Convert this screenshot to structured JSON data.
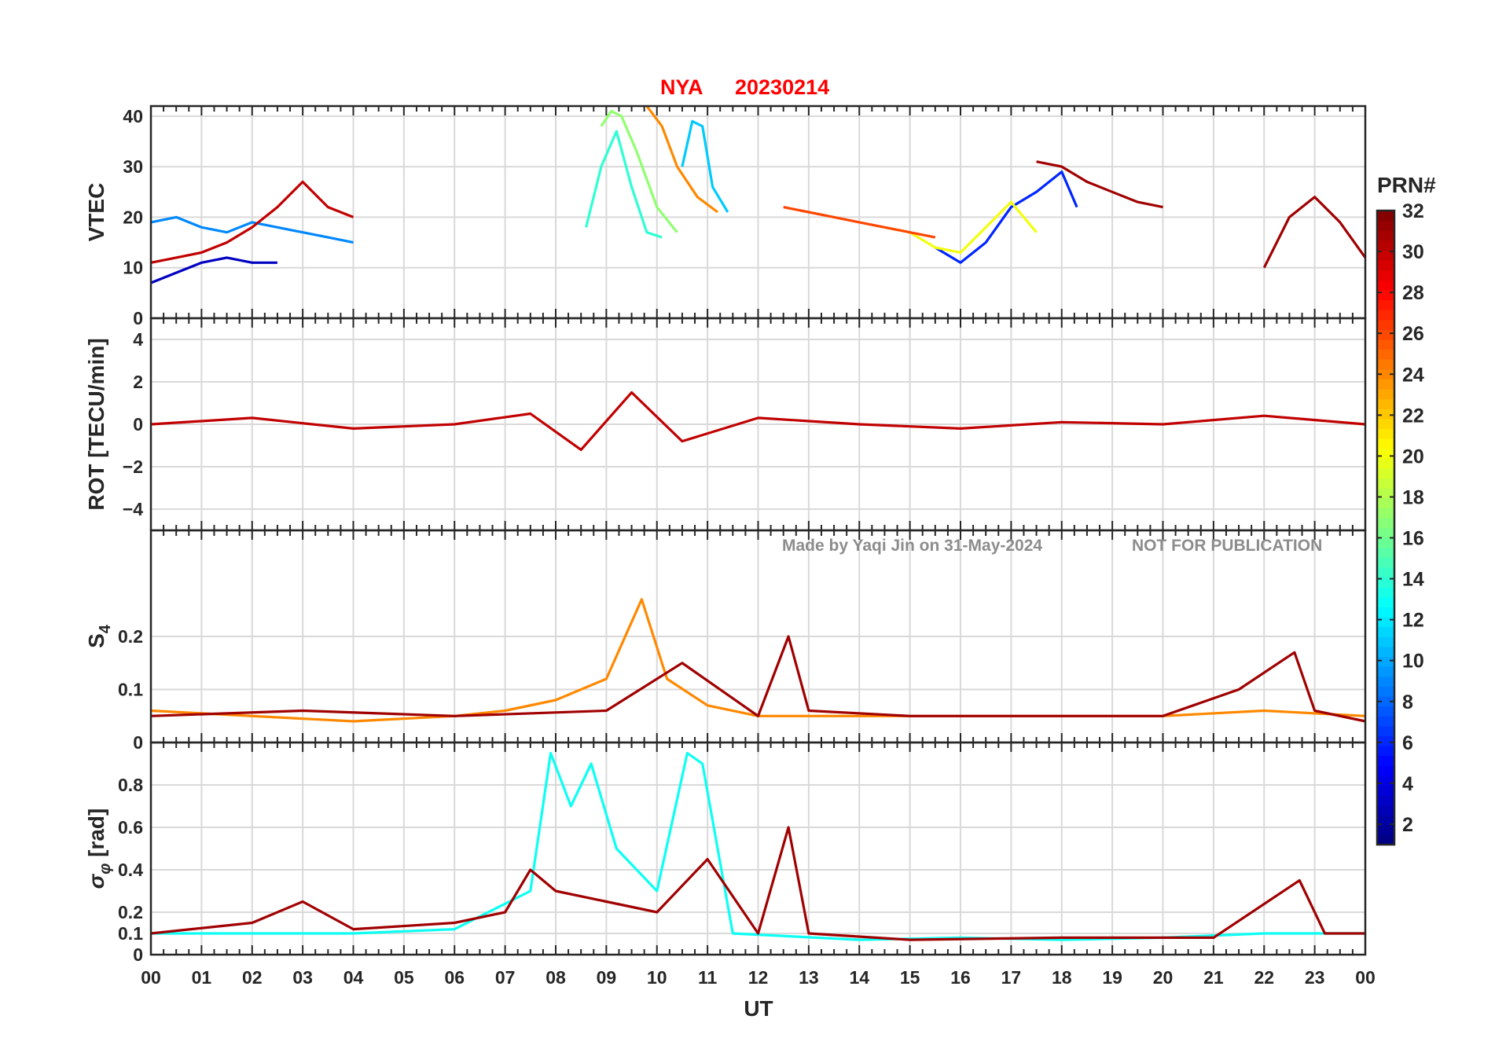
{
  "title": {
    "station": "NYA",
    "date": "20230214"
  },
  "watermark": {
    "author": "Made by Yaqi Jin on 31-May-2024",
    "notice": "NOT FOR PUBLICATION"
  },
  "xaxis": {
    "label": "UT",
    "range": [
      0,
      24
    ],
    "ticks": [
      "00",
      "01",
      "02",
      "03",
      "04",
      "05",
      "06",
      "07",
      "08",
      "09",
      "10",
      "11",
      "12",
      "13",
      "14",
      "15",
      "16",
      "17",
      "18",
      "19",
      "20",
      "21",
      "22",
      "23",
      "00"
    ]
  },
  "colorbar": {
    "label": "PRN#",
    "range": [
      1,
      32
    ],
    "ticks": [
      "2",
      "4",
      "6",
      "8",
      "10",
      "12",
      "14",
      "16",
      "18",
      "20",
      "22",
      "24",
      "26",
      "28",
      "30",
      "32"
    ],
    "colormap": "jet"
  },
  "chart_data": [
    {
      "type": "line",
      "ylabel": "VTEC",
      "ylim": [
        0,
        42
      ],
      "yticks": [
        "0",
        "10",
        "20",
        "30",
        "40"
      ],
      "grid": true,
      "series": [
        {
          "prn": 3,
          "x": [
            0,
            0.5,
            1,
            1.5,
            2,
            2.5
          ],
          "y": [
            7,
            9,
            11,
            12,
            11,
            11
          ]
        },
        {
          "prn": 6,
          "x": [
            15.5,
            16,
            16.5,
            17,
            17.5,
            18,
            18.3
          ],
          "y": [
            14,
            11,
            15,
            22,
            25,
            29,
            22
          ]
        },
        {
          "prn": 9,
          "x": [
            0,
            0.5,
            1,
            1.5,
            2,
            2.5,
            3,
            3.5,
            4
          ],
          "y": [
            19,
            20,
            18,
            17,
            19,
            18,
            17,
            16,
            15
          ]
        },
        {
          "prn": 11,
          "x": [
            10.5,
            10.7,
            10.9,
            11.1,
            11.4
          ],
          "y": [
            30,
            39,
            38,
            26,
            21
          ]
        },
        {
          "prn": 14,
          "x": [
            8.6,
            8.9,
            9.2,
            9.5,
            9.8,
            10.1
          ],
          "y": [
            18,
            30,
            37,
            26,
            17,
            16
          ]
        },
        {
          "prn": 17,
          "x": [
            8.9,
            9.1,
            9.3,
            9.6,
            10.0,
            10.4
          ],
          "y": [
            38,
            41,
            40,
            33,
            22,
            17
          ]
        },
        {
          "prn": 20,
          "x": [
            14.5,
            15,
            15.5,
            16,
            16.5,
            17,
            17.5
          ],
          "y": [
            18,
            17,
            14,
            13,
            18,
            23,
            17
          ]
        },
        {
          "prn": 24,
          "x": [
            9.8,
            10.1,
            10.4,
            10.8,
            11.2
          ],
          "y": [
            42,
            38,
            30,
            24,
            21
          ]
        },
        {
          "prn": 26,
          "x": [
            12.5,
            13,
            13.5,
            14,
            14.5,
            15,
            15.5
          ],
          "y": [
            22,
            21,
            20,
            19,
            18,
            17,
            16
          ]
        },
        {
          "prn": 30,
          "x": [
            0,
            0.5,
            1,
            1.5,
            2,
            2.5,
            3,
            3.5,
            4
          ],
          "y": [
            11,
            12,
            13,
            15,
            18,
            22,
            27,
            22,
            20
          ]
        },
        {
          "prn": 31,
          "x": [
            17.5,
            18,
            18.5,
            19,
            19.5,
            20
          ],
          "y": [
            31,
            30,
            27,
            25,
            23,
            22
          ]
        },
        {
          "prn": 31,
          "x": [
            22,
            22.5,
            23,
            23.5,
            24
          ],
          "y": [
            10,
            20,
            24,
            19,
            12
          ]
        }
      ]
    },
    {
      "type": "line",
      "ylabel": "ROT [TECU/min]",
      "ylim": [
        -5,
        5
      ],
      "yticks": [
        "-4",
        "-2",
        "0",
        "2",
        "4"
      ],
      "grid": true,
      "series": [
        {
          "prn": 30,
          "x": [
            0,
            2,
            4,
            6,
            7.5,
            8.5,
            9.5,
            10.5,
            12,
            14,
            16,
            18,
            20,
            22,
            24
          ],
          "y": [
            0,
            0.3,
            -0.2,
            0,
            0.5,
            -1.2,
            1.5,
            -0.8,
            0.3,
            0,
            -0.2,
            0.1,
            0,
            0.4,
            0
          ]
        }
      ]
    },
    {
      "type": "line",
      "ylabel": "S4",
      "ylim": [
        0,
        0.4
      ],
      "yticks": [
        "0",
        "0.1",
        "0.2"
      ],
      "grid": true,
      "series": [
        {
          "prn": 24,
          "x": [
            0,
            2,
            4,
            6,
            7,
            8,
            9,
            9.7,
            10.2,
            11,
            12,
            14,
            16,
            18,
            20,
            22,
            24
          ],
          "y": [
            0.06,
            0.05,
            0.04,
            0.05,
            0.06,
            0.08,
            0.12,
            0.27,
            0.12,
            0.07,
            0.05,
            0.05,
            0.05,
            0.05,
            0.05,
            0.06,
            0.05
          ]
        },
        {
          "prn": 31,
          "x": [
            0,
            3,
            6,
            9,
            10.5,
            12,
            12.6,
            13,
            15,
            18,
            20,
            21.5,
            22.6,
            23,
            24
          ],
          "y": [
            0.05,
            0.06,
            0.05,
            0.06,
            0.15,
            0.05,
            0.2,
            0.06,
            0.05,
            0.05,
            0.05,
            0.1,
            0.17,
            0.06,
            0.04
          ]
        }
      ]
    },
    {
      "type": "line",
      "ylabel": "σ_φ [rad]",
      "ylim": [
        0,
        1.0
      ],
      "yticks": [
        "0",
        "0.1",
        "0.2",
        "0.4",
        "0.6",
        "0.8"
      ],
      "grid": true,
      "series": [
        {
          "prn": 13,
          "x": [
            0,
            2,
            4,
            6,
            7.5,
            7.9,
            8.3,
            8.7,
            9.2,
            10,
            10.6,
            10.9,
            11.5,
            14,
            16,
            18,
            20,
            22,
            24
          ],
          "y": [
            0.1,
            0.1,
            0.1,
            0.12,
            0.3,
            0.95,
            0.7,
            0.9,
            0.5,
            0.3,
            0.95,
            0.9,
            0.1,
            0.07,
            0.08,
            0.07,
            0.08,
            0.1,
            0.1
          ]
        },
        {
          "prn": 31,
          "x": [
            0,
            2,
            3,
            4,
            6,
            7,
            7.5,
            8,
            9,
            10,
            11,
            12,
            12.6,
            13,
            15,
            18,
            21,
            22.7,
            23.2,
            24
          ],
          "y": [
            0.1,
            0.15,
            0.25,
            0.12,
            0.15,
            0.2,
            0.4,
            0.3,
            0.25,
            0.2,
            0.45,
            0.1,
            0.6,
            0.1,
            0.07,
            0.08,
            0.08,
            0.35,
            0.1,
            0.1
          ]
        }
      ]
    }
  ]
}
